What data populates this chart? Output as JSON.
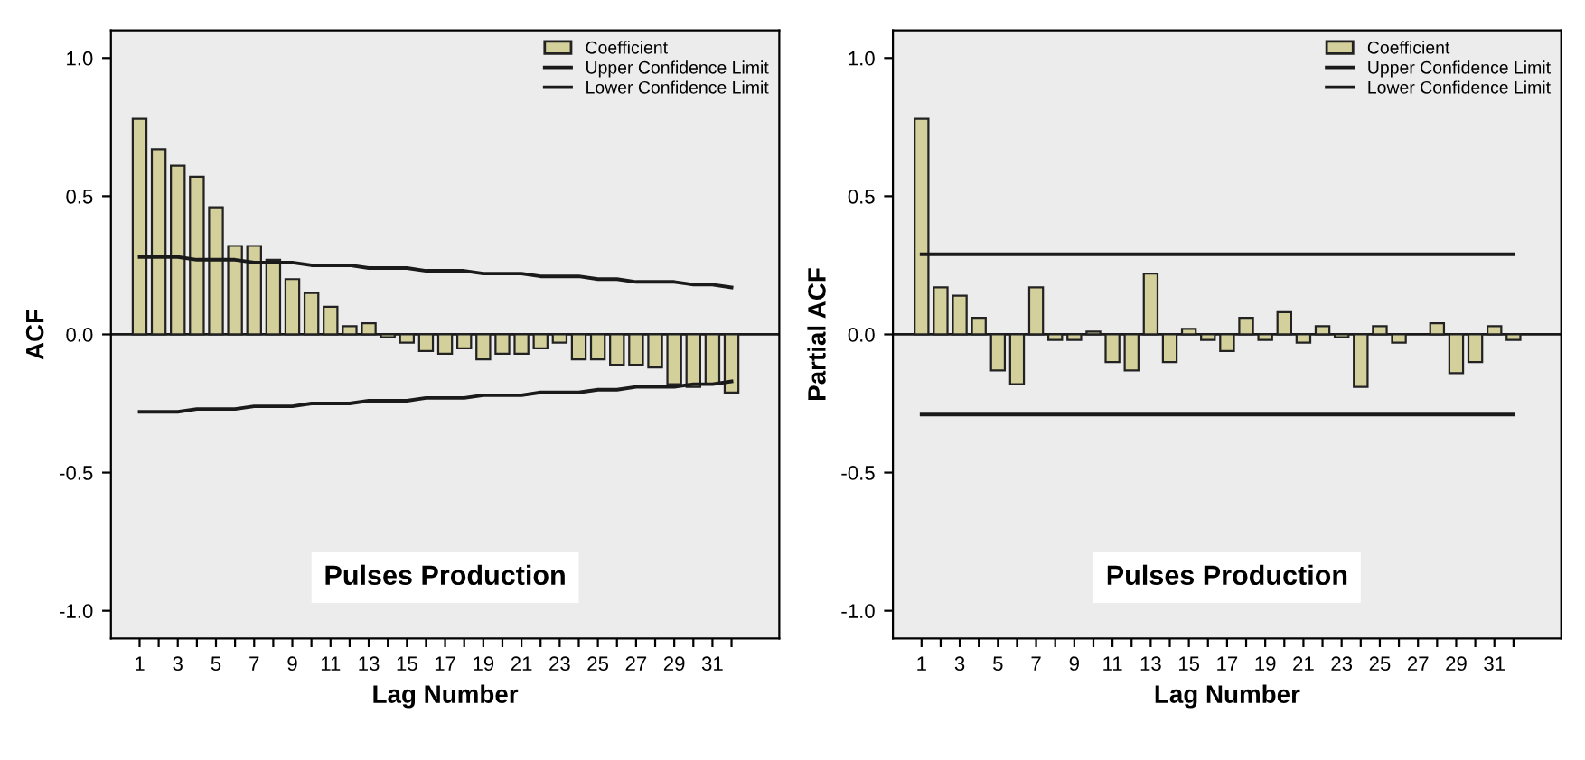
{
  "chart_data": [
    {
      "type": "bar",
      "xlabel": "Lag Number",
      "ylabel": "ACF",
      "annotations": [
        "Pulses Production"
      ],
      "categories": [
        "1",
        null,
        "3",
        null,
        "5",
        null,
        "7",
        null,
        "9",
        null,
        "11",
        null,
        "13",
        null,
        "15",
        null,
        "17",
        null,
        "19",
        null,
        "21",
        null,
        "23",
        null,
        "25",
        null,
        "27",
        null,
        "29",
        null,
        "31",
        null
      ],
      "series": [
        {
          "name": "Coefficient",
          "type": "bar",
          "color": "#d4d09c",
          "values": [
            0.78,
            0.67,
            0.61,
            0.57,
            0.46,
            0.32,
            0.32,
            0.27,
            0.2,
            0.15,
            0.1,
            0.03,
            0.04,
            -0.01,
            -0.03,
            -0.06,
            -0.07,
            -0.05,
            -0.09,
            -0.07,
            -0.07,
            -0.05,
            -0.03,
            -0.09,
            -0.09,
            -0.11,
            -0.11,
            -0.12,
            -0.18,
            -0.19,
            -0.18,
            -0.21
          ]
        },
        {
          "name": "Upper Confidence Limit",
          "type": "line",
          "color": "#1a1a1a",
          "values": [
            0.28,
            0.28,
            0.28,
            0.27,
            0.27,
            0.27,
            0.26,
            0.26,
            0.26,
            0.25,
            0.25,
            0.25,
            0.24,
            0.24,
            0.24,
            0.23,
            0.23,
            0.23,
            0.22,
            0.22,
            0.22,
            0.21,
            0.21,
            0.21,
            0.2,
            0.2,
            0.19,
            0.19,
            0.19,
            0.18,
            0.18,
            0.17
          ]
        },
        {
          "name": "Lower Confidence Limit",
          "type": "line",
          "color": "#1a1a1a",
          "values": [
            -0.28,
            -0.28,
            -0.28,
            -0.27,
            -0.27,
            -0.27,
            -0.26,
            -0.26,
            -0.26,
            -0.25,
            -0.25,
            -0.25,
            -0.24,
            -0.24,
            -0.24,
            -0.23,
            -0.23,
            -0.23,
            -0.22,
            -0.22,
            -0.22,
            -0.21,
            -0.21,
            -0.21,
            -0.2,
            -0.2,
            -0.19,
            -0.19,
            -0.19,
            -0.18,
            -0.18,
            -0.17
          ]
        }
      ],
      "ylim": [
        -1.1,
        1.1
      ],
      "yticks": [
        {
          "value": -1,
          "label": "-1.0"
        },
        {
          "value": -0.5,
          "label": "-0.5"
        },
        {
          "value": 0,
          "label": "0.0"
        },
        {
          "value": 0.5,
          "label": "0.5"
        },
        {
          "value": 1,
          "label": "1.0"
        }
      ],
      "ref_lines": [
        {
          "axis": "y",
          "value": 0,
          "label": null,
          "color": "#1a1a1a"
        }
      ],
      "legend": "top right",
      "grid": false
    },
    {
      "type": "bar",
      "xlabel": "Lag Number",
      "ylabel": "Partial ACF",
      "annotations": [
        "Pulses Production"
      ],
      "categories": [
        "1",
        null,
        "3",
        null,
        "5",
        null,
        "7",
        null,
        "9",
        null,
        "11",
        null,
        "13",
        null,
        "15",
        null,
        "17",
        null,
        "19",
        null,
        "21",
        null,
        "23",
        null,
        "25",
        null,
        "27",
        null,
        "29",
        null,
        "31",
        null
      ],
      "series": [
        {
          "name": "Coefficient",
          "type": "bar",
          "color": "#d4d09c",
          "values": [
            0.78,
            0.17,
            0.14,
            0.06,
            -0.13,
            -0.18,
            0.17,
            -0.02,
            -0.02,
            0.01,
            -0.1,
            -0.13,
            0.22,
            -0.1,
            0.02,
            -0.02,
            -0.06,
            0.06,
            -0.02,
            0.08,
            -0.03,
            0.03,
            -0.01,
            -0.19,
            0.03,
            -0.03,
            null,
            0.04,
            -0.14,
            -0.1,
            0.03,
            -0.02
          ]
        },
        {
          "name": "Upper Confidence Limit",
          "type": "line",
          "color": "#1a1a1a",
          "values": [
            0.29,
            0.29,
            0.29,
            0.29,
            0.29,
            0.29,
            0.29,
            0.29,
            0.29,
            0.29,
            0.29,
            0.29,
            0.29,
            0.29,
            0.29,
            0.29,
            0.29,
            0.29,
            0.29,
            0.29,
            0.29,
            0.29,
            0.29,
            0.29,
            0.29,
            0.29,
            0.29,
            0.29,
            0.29,
            0.29,
            0.29,
            0.29
          ]
        },
        {
          "name": "Lower Confidence Limit",
          "type": "line",
          "color": "#1a1a1a",
          "values": [
            -0.29,
            -0.29,
            -0.29,
            -0.29,
            -0.29,
            -0.29,
            -0.29,
            -0.29,
            -0.29,
            -0.29,
            -0.29,
            -0.29,
            -0.29,
            -0.29,
            -0.29,
            -0.29,
            -0.29,
            -0.29,
            -0.29,
            -0.29,
            -0.29,
            -0.29,
            -0.29,
            -0.29,
            -0.29,
            -0.29,
            -0.29,
            -0.29,
            -0.29,
            -0.29,
            -0.29,
            -0.29
          ]
        }
      ],
      "ylim": [
        -1.1,
        1.1
      ],
      "yticks": [
        {
          "value": -1,
          "label": "-1.0"
        },
        {
          "value": -0.5,
          "label": "-0.5"
        },
        {
          "value": 0,
          "label": "0.0"
        },
        {
          "value": 0.5,
          "label": "0.5"
        },
        {
          "value": 1,
          "label": "1.0"
        }
      ],
      "ref_lines": [
        {
          "axis": "y",
          "value": 0,
          "label": null,
          "color": "#1a1a1a"
        }
      ],
      "legend": "top right",
      "grid": false
    }
  ]
}
